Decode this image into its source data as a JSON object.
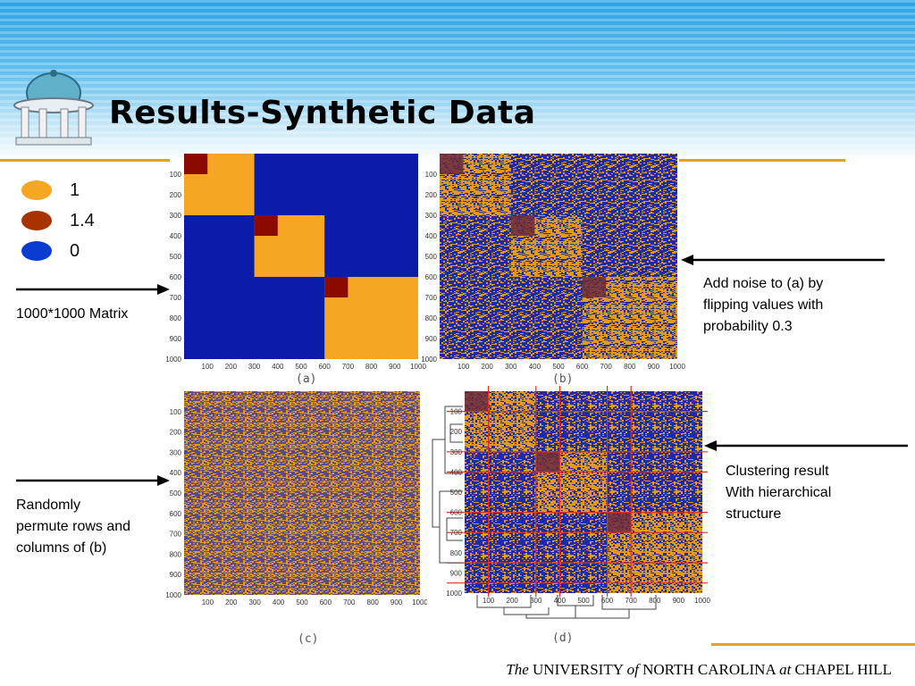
{
  "slide": {
    "title": "Results-Synthetic Data",
    "footer": {
      "the": "The",
      "university": " UNIVERSITY ",
      "of": "of",
      "nc": " NORTH CAROLINA ",
      "at": "at",
      "ch": " CHAPEL HILL"
    }
  },
  "legend": [
    {
      "label": "1",
      "color": "#f5a623"
    },
    {
      "label": "1.4",
      "color": "#a83200"
    },
    {
      "label": "0",
      "color": "#0a3cd0"
    }
  ],
  "figures": {
    "a": {
      "caption": "(a)"
    },
    "b": {
      "caption": "(b)"
    },
    "c": {
      "caption": "(c)"
    },
    "d": {
      "caption": "(d)"
    }
  },
  "axis_ticks": [
    "100",
    "200",
    "300",
    "400",
    "500",
    "600",
    "700",
    "800",
    "900",
    "1000"
  ],
  "annotations": {
    "matrix": "1000*1000 Matrix",
    "noise_1": "Add noise to (a) by",
    "noise_2": "flipping values with",
    "noise_3": "probability 0.3",
    "permute_1": "Randomly",
    "permute_2": "permute rows and",
    "permute_3": "columns of (b)",
    "cluster_1": "Clustering result",
    "cluster_2": "With hierarchical",
    "cluster_3": "structure"
  },
  "colors": {
    "orange": "#f5a623",
    "darkred": "#8b0a00",
    "blue": "#0a1ca8",
    "grid_red": "#e03020",
    "accent_gold": "#e3a41d"
  }
}
